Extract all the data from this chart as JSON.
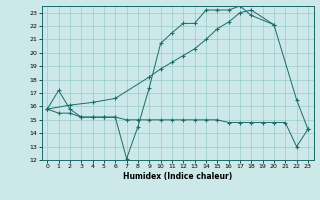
{
  "xlabel": "Humidex (Indice chaleur)",
  "bg_color": "#cce8e8",
  "grid_color": "#99cccc",
  "line_color": "#1a6b6b",
  "xlim": [
    -0.5,
    23.5
  ],
  "ylim": [
    12,
    23.5
  ],
  "xticks": [
    0,
    1,
    2,
    3,
    4,
    5,
    6,
    7,
    8,
    9,
    10,
    11,
    12,
    13,
    14,
    15,
    16,
    17,
    18,
    19,
    20,
    21,
    22,
    23
  ],
  "yticks": [
    12,
    13,
    14,
    15,
    16,
    17,
    18,
    19,
    20,
    21,
    22,
    23
  ],
  "line1_x": [
    0,
    1,
    2,
    3,
    4,
    5,
    6,
    7,
    8,
    9,
    10,
    11,
    12,
    13,
    14,
    15,
    16,
    17,
    18,
    20,
    22,
    23
  ],
  "line1_y": [
    15.8,
    17.2,
    15.8,
    15.2,
    15.2,
    15.2,
    15.2,
    12.1,
    14.5,
    17.4,
    20.7,
    21.5,
    22.2,
    22.2,
    23.2,
    23.2,
    23.2,
    23.5,
    22.8,
    22.1,
    16.5,
    14.3
  ],
  "line2_x": [
    0,
    2,
    4,
    6,
    9,
    10,
    11,
    12,
    13,
    14,
    15,
    16,
    17,
    18,
    20
  ],
  "line2_y": [
    15.8,
    16.1,
    16.3,
    16.6,
    18.2,
    18.8,
    19.3,
    19.8,
    20.3,
    21.0,
    21.8,
    22.3,
    23.0,
    23.2,
    22.1
  ],
  "line3_x": [
    0,
    1,
    2,
    3,
    4,
    5,
    6,
    7,
    8,
    9,
    10,
    11,
    12,
    13,
    14,
    15,
    16,
    17,
    18,
    19,
    20,
    21,
    22,
    23
  ],
  "line3_y": [
    15.8,
    15.5,
    15.5,
    15.2,
    15.2,
    15.2,
    15.2,
    15.0,
    15.0,
    15.0,
    15.0,
    15.0,
    15.0,
    15.0,
    15.0,
    15.0,
    14.8,
    14.8,
    14.8,
    14.8,
    14.8,
    14.8,
    13.0,
    14.3
  ]
}
